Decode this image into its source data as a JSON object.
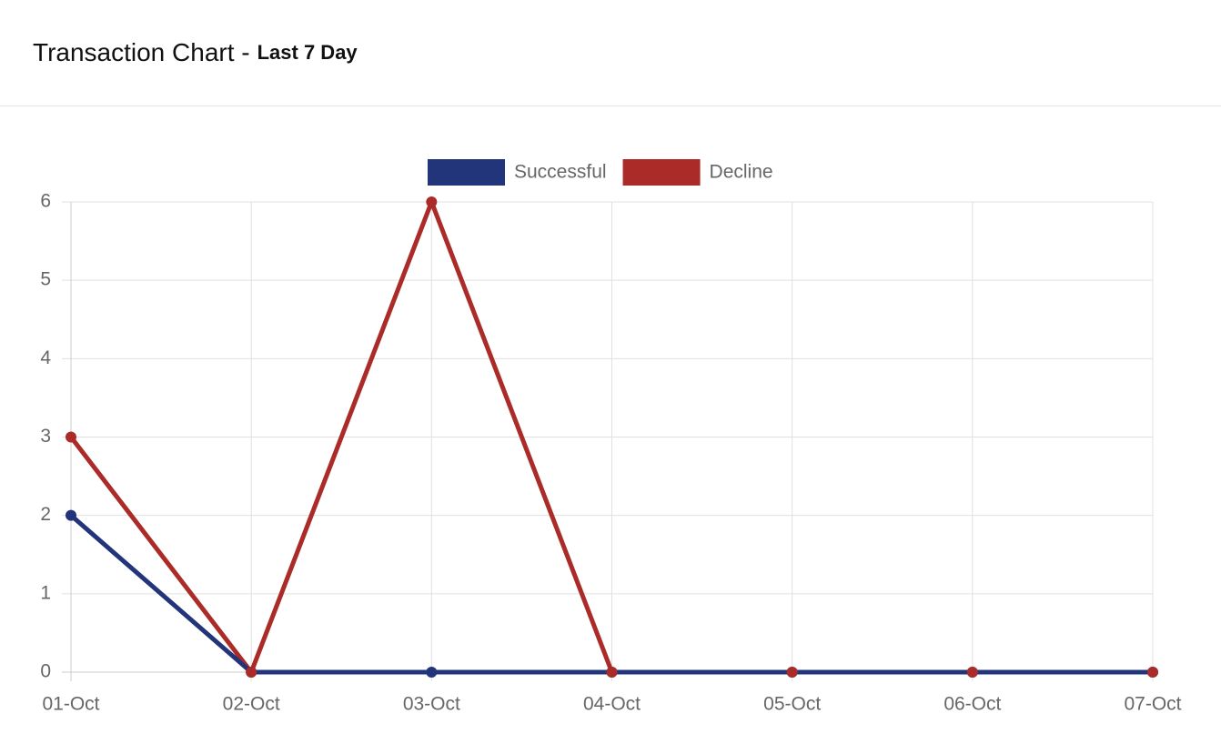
{
  "chart_data": {
    "type": "line",
    "title": "Transaction Chart -",
    "subtitle": "Last 7 Day",
    "categories": [
      "01-Oct",
      "02-Oct",
      "03-Oct",
      "04-Oct",
      "05-Oct",
      "06-Oct",
      "07-Oct"
    ],
    "series": [
      {
        "name": "Successful",
        "color": "#22347a",
        "values": [
          2,
          0,
          0,
          0,
          0,
          0,
          0
        ]
      },
      {
        "name": "Decline",
        "color": "#aa2b28",
        "values": [
          3,
          0,
          6,
          0,
          0,
          0,
          0
        ]
      }
    ],
    "ylim": [
      0,
      6
    ],
    "yticks": [
      0,
      1,
      2,
      3,
      4,
      5,
      6
    ],
    "grid": true,
    "legend": "top"
  }
}
